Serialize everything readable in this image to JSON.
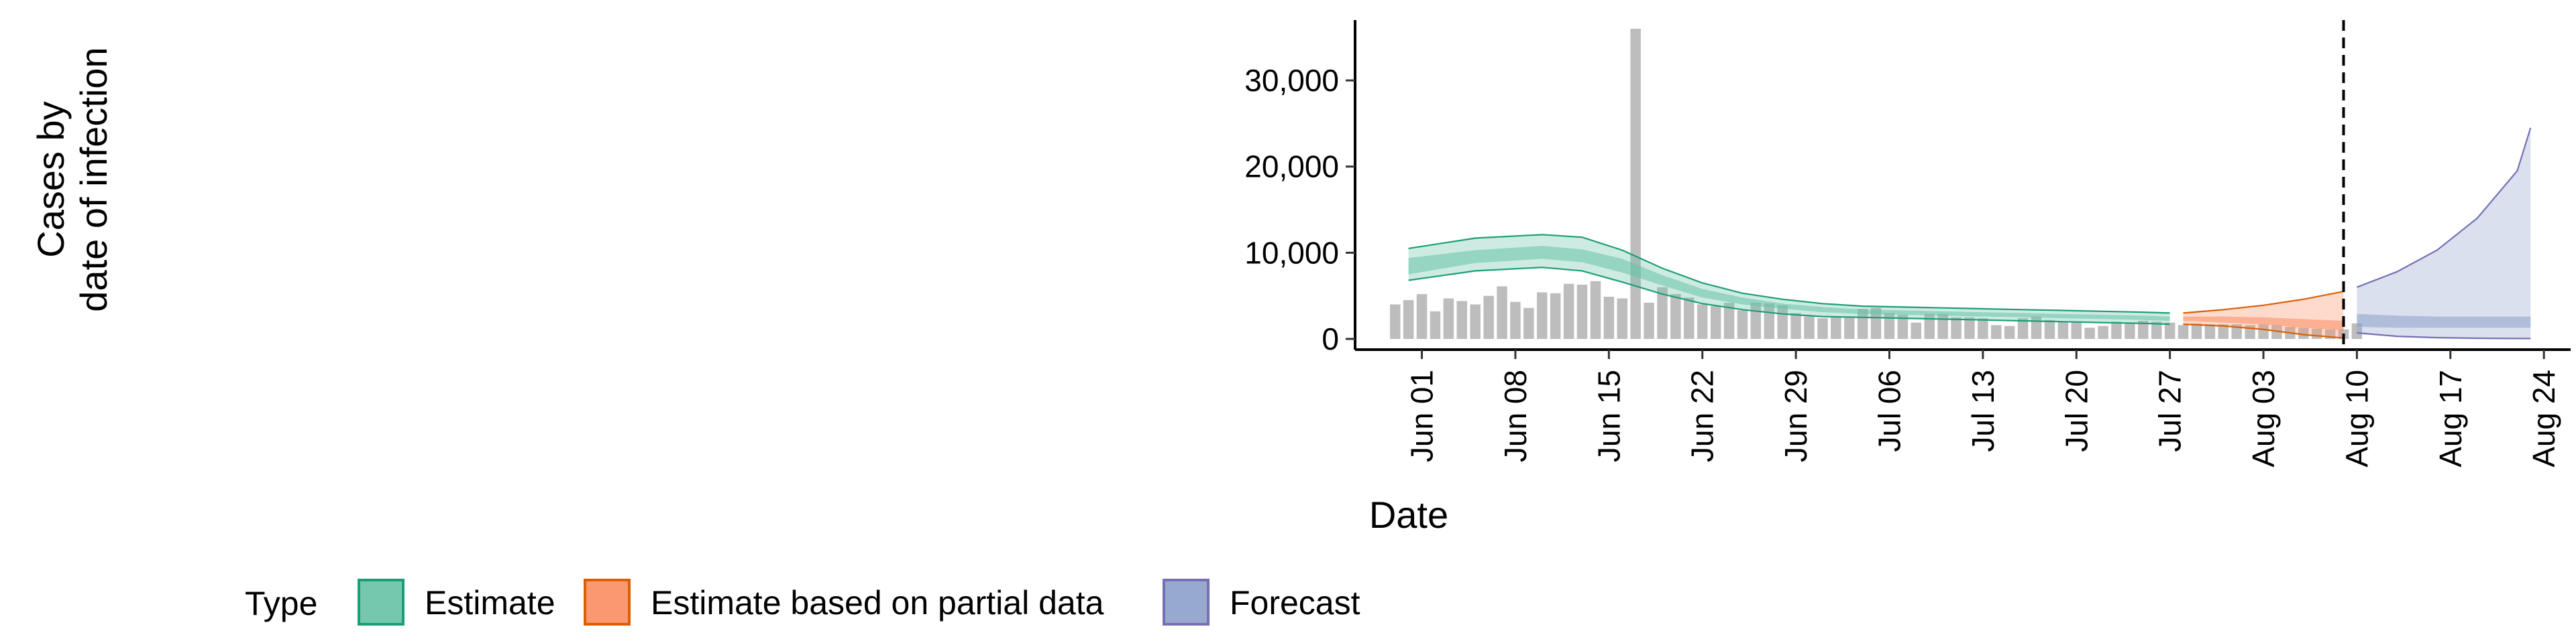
{
  "chart_data": {
    "type": "bar",
    "xlabel": "Date",
    "ylabel": [
      "Cases by",
      "date of infection"
    ],
    "ylim": [
      0,
      37000
    ],
    "xlim": [
      "2021-05-27",
      "2021-08-26"
    ],
    "y_ticks": [
      {
        "value": 0,
        "label": "0"
      },
      {
        "value": 10000,
        "label": "10,000"
      },
      {
        "value": 20000,
        "label": "20,000"
      },
      {
        "value": 30000,
        "label": "30,000"
      }
    ],
    "x_ticks": [
      {
        "date": "2021-06-01",
        "label": "Jun 01"
      },
      {
        "date": "2021-06-08",
        "label": "Jun 08"
      },
      {
        "date": "2021-06-15",
        "label": "Jun 15"
      },
      {
        "date": "2021-06-22",
        "label": "Jun 22"
      },
      {
        "date": "2021-06-29",
        "label": "Jun 29"
      },
      {
        "date": "2021-07-06",
        "label": "Jul 06"
      },
      {
        "date": "2021-07-13",
        "label": "Jul 13"
      },
      {
        "date": "2021-07-20",
        "label": "Jul 20"
      },
      {
        "date": "2021-07-27",
        "label": "Jul 27"
      },
      {
        "date": "2021-08-03",
        "label": "Aug 03"
      },
      {
        "date": "2021-08-10",
        "label": "Aug 10"
      },
      {
        "date": "2021-08-17",
        "label": "Aug 17"
      },
      {
        "date": "2021-08-24",
        "label": "Aug 24"
      }
    ],
    "forecast_date": "2021-08-09",
    "grid": false,
    "legend_position": "bottom-left",
    "legend_title": "Type",
    "observed_color": "#bdbdbd",
    "observed_cases": {
      "start_date": "2021-05-30",
      "values": [
        4000,
        4500,
        5200,
        3200,
        4700,
        4400,
        4000,
        5000,
        6100,
        4300,
        3600,
        5400,
        5300,
        6400,
        6300,
        6700,
        4900,
        4700,
        36000,
        4200,
        6000,
        5200,
        4800,
        4000,
        3800,
        4200,
        3300,
        4200,
        4100,
        3900,
        3000,
        2600,
        2400,
        2500,
        2600,
        3500,
        3600,
        3000,
        2800,
        1900,
        2900,
        2900,
        2500,
        2500,
        2400,
        1600,
        1500,
        2400,
        2600,
        2200,
        2000,
        1900,
        1300,
        1500,
        2000,
        1900,
        2100,
        2000,
        1900,
        1600,
        1800,
        1700,
        1700,
        1700,
        1600,
        1700,
        1600,
        1400,
        1300,
        1200,
        1100,
        1100,
        1800
      ]
    },
    "series": [
      {
        "name": "Estimate",
        "color": "#1b9e77",
        "fill": "#66c2a5",
        "x": [
          "2021-05-31",
          "2021-06-05",
          "2021-06-10",
          "2021-06-13",
          "2021-06-16",
          "2021-06-19",
          "2021-06-22",
          "2021-06-25",
          "2021-06-28",
          "2021-07-01",
          "2021-07-04",
          "2021-07-07",
          "2021-07-10",
          "2021-07-13",
          "2021-07-16",
          "2021-07-19",
          "2021-07-22",
          "2021-07-25",
          "2021-07-27"
        ],
        "median": [
          8500,
          9500,
          10000,
          9700,
          8500,
          6800,
          5300,
          4400,
          3800,
          3400,
          3150,
          3050,
          2950,
          2850,
          2750,
          2650,
          2550,
          2450,
          2350
        ],
        "lower_50": [
          7500,
          8800,
          9300,
          8900,
          7700,
          6200,
          4800,
          4000,
          3500,
          3100,
          2900,
          2800,
          2700,
          2600,
          2500,
          2400,
          2300,
          2200,
          2100
        ],
        "upper_50": [
          9400,
          10300,
          10800,
          10400,
          9300,
          7400,
          5800,
          4800,
          4100,
          3700,
          3400,
          3300,
          3200,
          3100,
          3000,
          2900,
          2800,
          2700,
          2600
        ],
        "lower_90": [
          6800,
          7900,
          8300,
          7900,
          6600,
          5200,
          4100,
          3400,
          2900,
          2600,
          2500,
          2400,
          2300,
          2200,
          2100,
          2000,
          1900,
          1800,
          1700
        ],
        "upper_90": [
          10500,
          11700,
          12100,
          11800,
          10300,
          8200,
          6500,
          5300,
          4600,
          4100,
          3800,
          3700,
          3600,
          3500,
          3400,
          3300,
          3200,
          3100,
          3000
        ]
      },
      {
        "name": "Estimate based on partial data",
        "color": "#d95f02",
        "fill": "#fc8d62",
        "x": [
          "2021-07-28",
          "2021-07-31",
          "2021-08-03",
          "2021-08-06",
          "2021-08-09"
        ],
        "median": [
          2300,
          2200,
          2000,
          1700,
          1400
        ],
        "lower_50": [
          2100,
          1900,
          1700,
          1300,
          1000
        ],
        "upper_50": [
          2600,
          2600,
          2500,
          2300,
          2100
        ],
        "lower_90": [
          1700,
          1500,
          1100,
          500,
          100
        ],
        "upper_90": [
          3000,
          3400,
          3900,
          4600,
          5500
        ]
      },
      {
        "name": "Forecast",
        "color": "#7570b3",
        "fill": "#8da0cb",
        "x": [
          "2021-08-10",
          "2021-08-13",
          "2021-08-16",
          "2021-08-19",
          "2021-08-22",
          "2021-08-23"
        ],
        "median": [
          2000,
          1900,
          1900,
          1900,
          1900,
          1900
        ],
        "lower_50": [
          1400,
          1300,
          1300,
          1300,
          1300,
          1300
        ],
        "upper_50": [
          2900,
          2700,
          2600,
          2600,
          2600,
          2600
        ],
        "lower_90": [
          700,
          300,
          150,
          80,
          50,
          50
        ],
        "upper_90": [
          6000,
          7800,
          10300,
          14000,
          19500,
          24500
        ]
      }
    ]
  }
}
